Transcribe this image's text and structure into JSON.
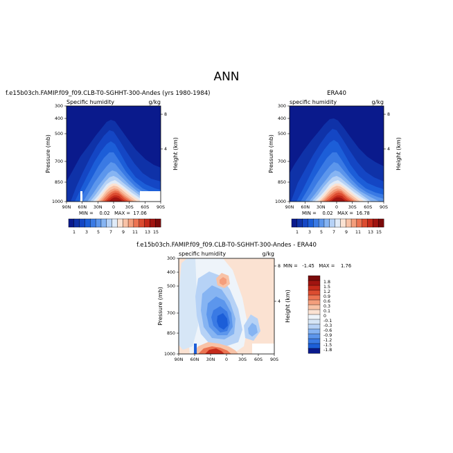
{
  "figure_title": "ANN",
  "chart_data": [
    {
      "type": "heatmap",
      "title": "f.e15b03ch.FAMIP.f09_f09.CLB-T0-SGHHT-300-Andes (yrs 1980-1984)",
      "subtitle_left": "Specific humidity",
      "subtitle_right": "g/kg",
      "ylabel": "Pressure (mb)",
      "ylabel_right": "Height (km)",
      "x_ticks": [
        "90N",
        "60N",
        "30N",
        "0",
        "30S",
        "60S",
        "90S"
      ],
      "y_ticks": [
        "300",
        "400",
        "500",
        "700",
        "850",
        "1000"
      ],
      "y_ticks_right": [
        "8",
        "4"
      ],
      "stats": "MIN =    0.02   MAX =  17.06",
      "min": 0.02,
      "max": 17.06,
      "colorbar_labels": [
        "1",
        "3",
        "5",
        "7",
        "9",
        "11",
        "13",
        "15"
      ]
    },
    {
      "type": "heatmap",
      "title": "ERA40",
      "subtitle_left": "specific humidity",
      "subtitle_right": "g/kg",
      "ylabel": "Pressure (mb)",
      "ylabel_right": "Height (km)",
      "x_ticks": [
        "90N",
        "60N",
        "30N",
        "0",
        "30S",
        "60S",
        "90S"
      ],
      "y_ticks": [
        "300",
        "400",
        "500",
        "700",
        "850",
        "1000"
      ],
      "y_ticks_right": [
        "8",
        "4"
      ],
      "stats": "MIN =    0.02   MAX =  16.78",
      "min": 0.02,
      "max": 16.78,
      "colorbar_labels": [
        "1",
        "3",
        "5",
        "7",
        "9",
        "11",
        "13",
        "15"
      ]
    },
    {
      "type": "heatmap",
      "title": "f.e15b03ch.FAMIP.f09_f09.CLB-T0-SGHHT-300-Andes - ERA40",
      "subtitle_left": "specific humidity",
      "subtitle_right": "g/kg",
      "ylabel": "Pressure (mb)",
      "ylabel_right": "Height (km)",
      "x_ticks": [
        "90N",
        "60N",
        "30N",
        "0",
        "30S",
        "60S",
        "90S"
      ],
      "y_ticks": [
        "300",
        "400",
        "500",
        "700",
        "850",
        "1000"
      ],
      "y_ticks_right": [
        "8",
        "4"
      ],
      "stats": "MIN =   -1.45   MAX =    1.76",
      "min": -1.45,
      "max": 1.76,
      "colorbar_labels": [
        "1.8",
        "1.5",
        "1.2",
        "0.9",
        "0.6",
        "0.3",
        "0.1",
        "0",
        "-0.1",
        "-0.3",
        "-0.6",
        "-0.9",
        "-1.2",
        "-1.5",
        "-1.8"
      ]
    }
  ],
  "colors": {
    "abs_levels": [
      "#0a1a8c",
      "#0f32a8",
      "#1446c4",
      "#1c5ed8",
      "#3a7ae4",
      "#5c96ec",
      "#86b4f2",
      "#b6d2f6",
      "#e0ebf8",
      "#fbe2d2",
      "#f8c2a6",
      "#f49e7c",
      "#ec7452",
      "#dc4c30",
      "#c42a1a",
      "#a01410",
      "#7a0a0a"
    ],
    "diff_levels": [
      "#7a0a0a",
      "#a01410",
      "#c42a1a",
      "#dc4c30",
      "#ec7452",
      "#f49e7c",
      "#f8c2a6",
      "#fbe2d2",
      "#eef4fa",
      "#d6e6f6",
      "#b6d2f6",
      "#86b4f2",
      "#5c96ec",
      "#3a7ae4",
      "#1c5ed8",
      "#0a1a8c"
    ]
  }
}
